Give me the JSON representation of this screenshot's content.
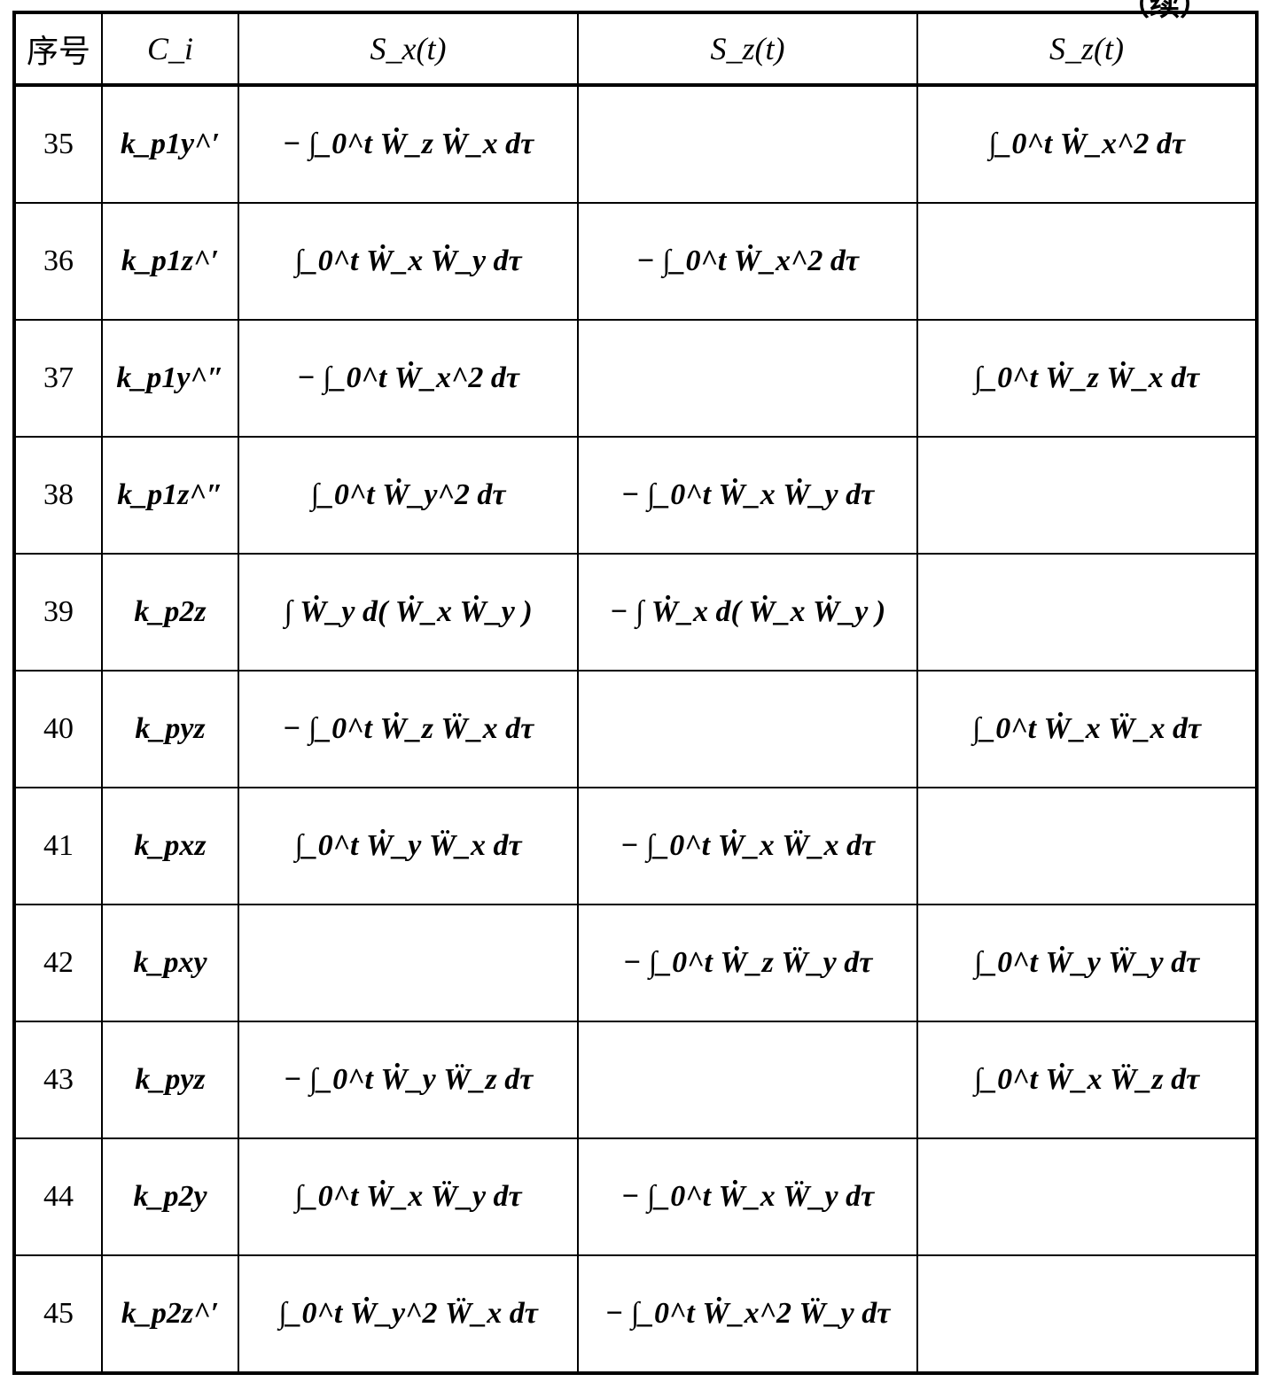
{
  "continuation_label": "（续）",
  "table": {
    "headers": [
      "序号",
      "C_i",
      "S_x(t)",
      "S_z(t)",
      "S_z(t)"
    ],
    "rows": [
      {
        "no": "35",
        "ci": "k_p1y^′",
        "sx": "− ∫_0^t Ẇ_z Ẇ_x dτ",
        "sy": "",
        "sz": "∫_0^t Ẇ_x^2 dτ"
      },
      {
        "no": "36",
        "ci": "k_p1z^′",
        "sx": "∫_0^t Ẇ_x Ẇ_y dτ",
        "sy": "− ∫_0^t Ẇ_x^2 dτ",
        "sz": ""
      },
      {
        "no": "37",
        "ci": "k_p1y^″",
        "sx": "− ∫_0^t Ẇ_x^2 dτ",
        "sy": "",
        "sz": "∫_0^t Ẇ_z Ẇ_x dτ"
      },
      {
        "no": "38",
        "ci": "k_p1z^″",
        "sx": "∫_0^t Ẇ_y^2 dτ",
        "sy": "− ∫_0^t Ẇ_x Ẇ_y dτ",
        "sz": ""
      },
      {
        "no": "39",
        "ci": "k_p2z",
        "sx": "∫ Ẇ_y d( Ẇ_x Ẇ_y )",
        "sy": "− ∫ Ẇ_x d( Ẇ_x Ẇ_y )",
        "sz": ""
      },
      {
        "no": "40",
        "ci": "k_pyz",
        "sx": "− ∫_0^t Ẇ_z Ẅ_x dτ",
        "sy": "",
        "sz": "∫_0^t Ẇ_x Ẅ_x dτ"
      },
      {
        "no": "41",
        "ci": "k_pxz",
        "sx": "∫_0^t Ẇ_y Ẅ_x dτ",
        "sy": "− ∫_0^t Ẇ_x Ẅ_x dτ",
        "sz": ""
      },
      {
        "no": "42",
        "ci": "k_pxy",
        "sx": "",
        "sy": "− ∫_0^t Ẇ_z Ẅ_y dτ",
        "sz": "∫_0^t Ẇ_y Ẅ_y dτ"
      },
      {
        "no": "43",
        "ci": "k_pyz",
        "sx": "− ∫_0^t Ẇ_y Ẅ_z dτ",
        "sy": "",
        "sz": "∫_0^t Ẇ_x Ẅ_z dτ"
      },
      {
        "no": "44",
        "ci": "k_p2y",
        "sx": "∫_0^t Ẇ_x Ẅ_y dτ",
        "sy": "− ∫_0^t Ẇ_x Ẅ_y dτ",
        "sz": ""
      },
      {
        "no": "45",
        "ci": "k_p2z^′",
        "sx": "∫_0^t Ẇ_y^2 Ẅ_x dτ",
        "sy": "− ∫_0^t Ẇ_x^2 Ẅ_y dτ",
        "sz": ""
      }
    ]
  }
}
